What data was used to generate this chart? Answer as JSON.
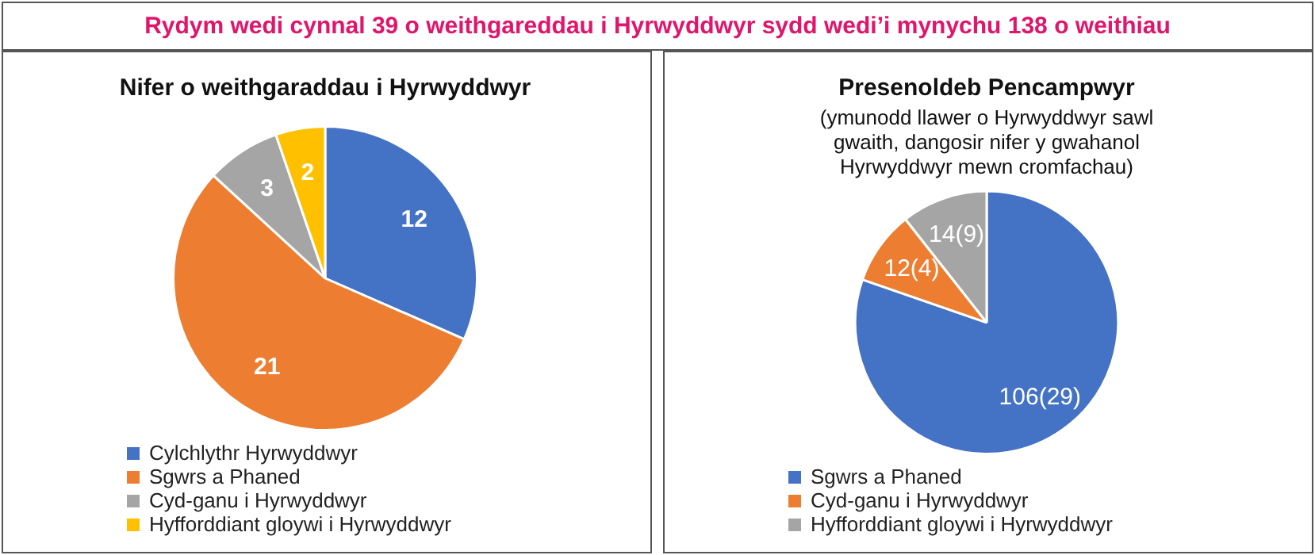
{
  "chart_data": [
    {
      "type": "other",
      "title": "Rydym wedi cynnal 39 o weithgareddau i Hyrwyddwyr sydd wedi’i mynychu 138 o weithiau"
    },
    {
      "type": "pie",
      "title": "Nifer o weithgaraddau i Hyrwyddwyr",
      "categories": [
        "Cylchlythr Hyrwyddwyr",
        "Sgwrs a Phaned",
        "Cyd-ganu i Hyrwyddwyr",
        "Hyfforddiant gloywi i Hyrwyddwyr"
      ],
      "values": [
        12,
        21,
        3,
        2
      ],
      "colors": [
        "#4472c4",
        "#ed7d31",
        "#a5a5a5",
        "#ffc000"
      ],
      "data_labels": true,
      "legend": "bottom"
    },
    {
      "type": "pie",
      "title": "Presenoldeb Pencampwyr",
      "subtitle": "(ymunodd llawer o Hyrwyddwyr sawl gwaith, dangosir nifer y gwahanol Hyrwyddwyr mewn cromfachau)",
      "categories": [
        "Sgwrs a Phaned",
        "Cyd-ganu i Hyrwyddwyr",
        "Hyfforddiant gloywi i Hyrwyddwyr"
      ],
      "values": [
        106,
        12,
        14
      ],
      "value_labels": [
        "106(29)",
        "12(4)",
        "14(9)"
      ],
      "colors": [
        "#4472c4",
        "#ed7d31",
        "#a5a5a5"
      ],
      "legend": "bottom"
    }
  ]
}
